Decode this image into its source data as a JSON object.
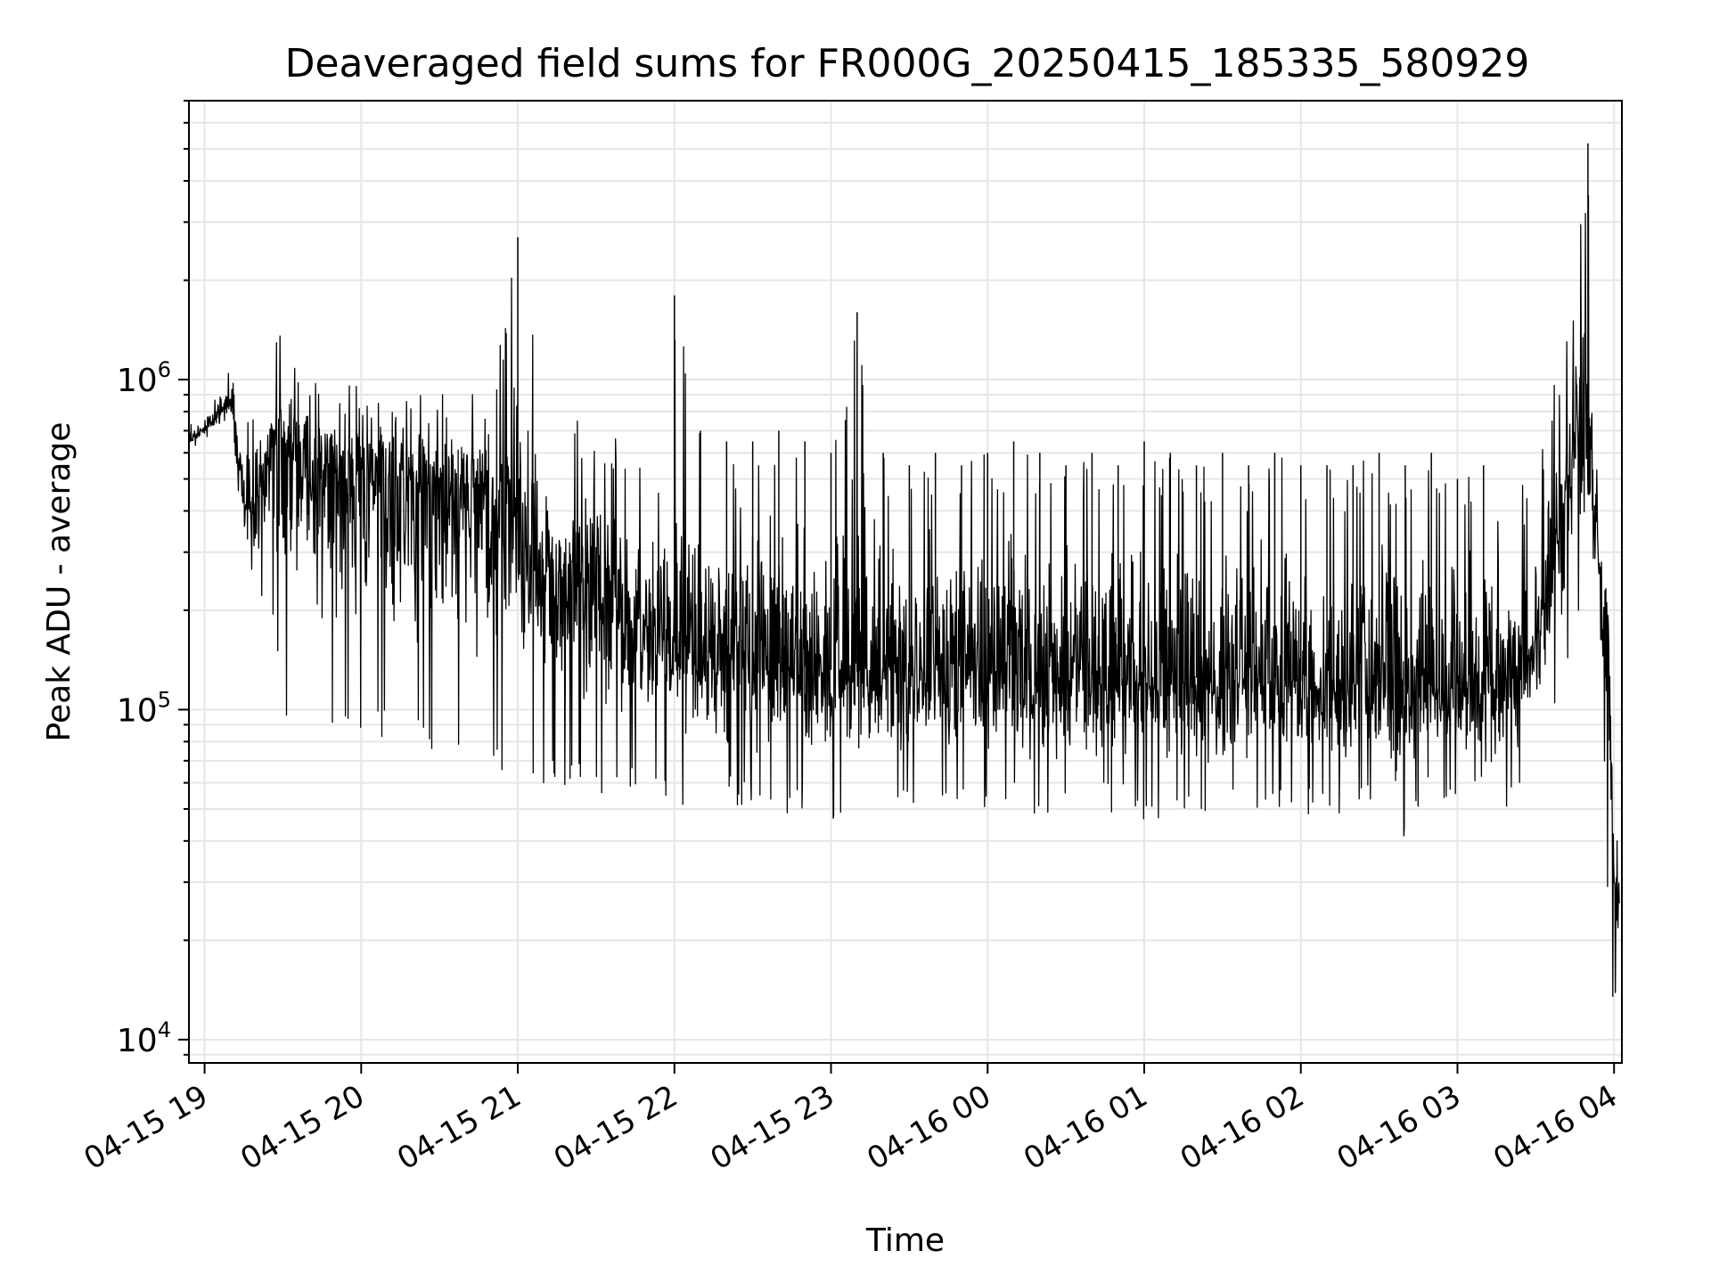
{
  "chart_data": {
    "type": "line",
    "title": "Deaveraged field sums for FR000G_20250415_185335_580929",
    "xlabel": "Time",
    "ylabel": "Peak ADU - average",
    "yscale": "log",
    "xlim": [
      "2025-04-15 18:54",
      "2025-04-16 04:03"
    ],
    "ylim": [
      8500,
      7000000
    ],
    "grid": true,
    "line_color": "#000000",
    "grid_color": "#e6e6e6",
    "x_ticks": [
      {
        "t": "2025-04-15 19:00",
        "label": "04-15 19"
      },
      {
        "t": "2025-04-15 20:00",
        "label": "04-15 20"
      },
      {
        "t": "2025-04-15 21:00",
        "label": "04-15 21"
      },
      {
        "t": "2025-04-15 22:00",
        "label": "04-15 22"
      },
      {
        "t": "2025-04-15 23:00",
        "label": "04-15 23"
      },
      {
        "t": "2025-04-16 00:00",
        "label": "04-16 00"
      },
      {
        "t": "2025-04-16 01:00",
        "label": "04-16 01"
      },
      {
        "t": "2025-04-16 02:00",
        "label": "04-16 02"
      },
      {
        "t": "2025-04-16 03:00",
        "label": "04-16 03"
      },
      {
        "t": "2025-04-16 04:00",
        "label": "04-16 04"
      }
    ],
    "y_ticks": [
      {
        "value": 10000,
        "base": "10",
        "exp": "4"
      },
      {
        "value": 100000,
        "base": "10",
        "exp": "5"
      },
      {
        "value": 1000000,
        "base": "10",
        "exp": "6"
      }
    ],
    "series": [
      {
        "x": [
          "2025-04-15 18:54",
          "2025-04-15 19:00",
          "2025-04-15 19:05",
          "2025-04-15 19:10",
          "2025-04-15 19:15",
          "2025-04-15 19:20",
          "2025-04-15 19:25",
          "2025-04-15 19:30",
          "2025-04-15 19:35",
          "2025-04-15 19:40",
          "2025-04-15 19:45",
          "2025-04-15 19:50",
          "2025-04-15 19:55",
          "2025-04-15 20:00",
          "2025-04-15 20:10",
          "2025-04-15 20:20",
          "2025-04-15 20:30",
          "2025-04-15 20:40",
          "2025-04-15 20:50",
          "2025-04-15 21:00",
          "2025-04-15 21:10",
          "2025-04-15 21:20",
          "2025-04-15 21:30",
          "2025-04-15 21:40",
          "2025-04-15 21:50",
          "2025-04-15 22:00",
          "2025-04-15 22:10",
          "2025-04-15 22:20",
          "2025-04-15 22:30",
          "2025-04-15 22:40",
          "2025-04-15 22:50",
          "2025-04-15 23:00",
          "2025-04-15 23:10",
          "2025-04-15 23:20",
          "2025-04-15 23:30",
          "2025-04-15 23:40",
          "2025-04-15 23:50",
          "2025-04-16 00:00",
          "2025-04-16 00:10",
          "2025-04-16 00:20",
          "2025-04-16 00:30",
          "2025-04-16 00:40",
          "2025-04-16 00:50",
          "2025-04-16 01:00",
          "2025-04-16 01:10",
          "2025-04-16 01:20",
          "2025-04-16 01:30",
          "2025-04-16 01:40",
          "2025-04-16 01:50",
          "2025-04-16 02:00",
          "2025-04-16 02:10",
          "2025-04-16 02:20",
          "2025-04-16 02:30",
          "2025-04-16 02:40",
          "2025-04-16 02:50",
          "2025-04-16 03:00",
          "2025-04-16 03:10",
          "2025-04-16 03:20",
          "2025-04-16 03:30",
          "2025-04-16 03:40",
          "2025-04-16 03:45",
          "2025-04-16 03:50",
          "2025-04-16 03:55",
          "2025-04-16 03:58",
          "2025-04-16 04:00",
          "2025-04-16 04:02"
        ],
        "y_median": [
          650000,
          700000,
          780000,
          880000,
          420000,
          400000,
          650000,
          620000,
          580000,
          560000,
          550000,
          540000,
          530000,
          520000,
          500000,
          480000,
          480000,
          470000,
          420000,
          350000,
          280000,
          240000,
          210000,
          190000,
          170000,
          160000,
          150000,
          145000,
          140000,
          138000,
          135000,
          132000,
          130000,
          130000,
          130000,
          132000,
          132000,
          132000,
          130000,
          130000,
          128000,
          128000,
          128000,
          125000,
          125000,
          125000,
          125000,
          125000,
          125000,
          122000,
          122000,
          120000,
          120000,
          118000,
          118000,
          120000,
          120000,
          125000,
          150000,
          350000,
          700000,
          600000,
          250000,
          150000,
          30000,
          25000
        ],
        "y_upper": [
          720000,
          800000,
          900000,
          1100000,
          700000,
          900000,
          1300000,
          1400000,
          1300000,
          1200000,
          1100000,
          1100000,
          1050000,
          1000000,
          1000000,
          950000,
          1000000,
          950000,
          950000,
          2700000,
          900000,
          800000,
          750000,
          700000,
          650000,
          1800000,
          700000,
          650000,
          650000,
          700000,
          650000,
          600000,
          1600000,
          600000,
          550000,
          600000,
          550000,
          600000,
          650000,
          600000,
          550000,
          600000,
          550000,
          650000,
          600000,
          550000,
          600000,
          550000,
          600000,
          550000,
          550000,
          550000,
          600000,
          550000,
          600000,
          500000,
          550000,
          500000,
          500000,
          1300000,
          2000000,
          5200000,
          800000,
          250000,
          35000,
          55000
        ],
        "y_lower": [
          620000,
          650000,
          700000,
          600000,
          250000,
          150000,
          250000,
          80000,
          100000,
          90000,
          90000,
          85000,
          80000,
          80000,
          80000,
          75000,
          70000,
          70000,
          65000,
          60000,
          60000,
          58000,
          55000,
          55000,
          52000,
          50000,
          50000,
          50000,
          50000,
          48000,
          48000,
          45000,
          50000,
          48000,
          50000,
          50000,
          48000,
          50000,
          48000,
          48000,
          50000,
          48000,
          48000,
          45000,
          45000,
          45000,
          48000,
          48000,
          48000,
          48000,
          48000,
          48000,
          48000,
          40000,
          50000,
          50000,
          50000,
          50000,
          60000,
          100000,
          150000,
          300000,
          150000,
          19000,
          11000,
          19000
        ]
      }
    ]
  }
}
